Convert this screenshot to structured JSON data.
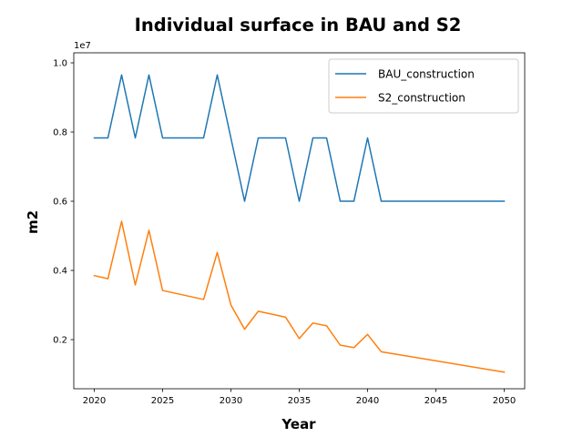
{
  "chart_data": {
    "type": "line",
    "title": "Individual surface in BAU and S2",
    "xlabel": "Year",
    "ylabel": "m2",
    "y_offset_label": "1e7",
    "y_scale_factor": 10000000,
    "xlim": [
      2018.5,
      2051.5
    ],
    "ylim": [
      580000,
      10290000
    ],
    "x_ticks": [
      2020,
      2025,
      2030,
      2035,
      2040,
      2045,
      2050
    ],
    "y_ticks": [
      0.2,
      0.4,
      0.6,
      0.8,
      1.0
    ],
    "y_tick_labels": [
      "0.2",
      "0.4",
      "0.6",
      "0.8",
      "1.0"
    ],
    "grid": false,
    "legend_position": "top-right",
    "series": [
      {
        "name": "BAU_construction",
        "color": "#1f77b4",
        "points": [
          [
            2020,
            7830000
          ],
          [
            2021,
            7830000
          ],
          [
            2022,
            9650000
          ],
          [
            2023,
            7830000
          ],
          [
            2024,
            9650000
          ],
          [
            2025,
            7830000
          ],
          [
            2028,
            7830000
          ],
          [
            2029,
            9650000
          ],
          [
            2031,
            6000000
          ],
          [
            2032,
            7830000
          ],
          [
            2034,
            7830000
          ],
          [
            2035,
            6000000
          ],
          [
            2036,
            7830000
          ],
          [
            2037,
            7830000
          ],
          [
            2038,
            6000000
          ],
          [
            2039,
            6000000
          ],
          [
            2040,
            7830000
          ],
          [
            2041,
            6000000
          ],
          [
            2050,
            6000000
          ]
        ]
      },
      {
        "name": "S2_construction",
        "color": "#ff7f0e",
        "points": [
          [
            2020,
            3850000
          ],
          [
            2021,
            3760000
          ],
          [
            2022,
            5420000
          ],
          [
            2023,
            3580000
          ],
          [
            2024,
            5160000
          ],
          [
            2025,
            3420000
          ],
          [
            2028,
            3160000
          ],
          [
            2029,
            4520000
          ],
          [
            2030,
            3000000
          ],
          [
            2031,
            2300000
          ],
          [
            2032,
            2820000
          ],
          [
            2034,
            2650000
          ],
          [
            2035,
            2030000
          ],
          [
            2036,
            2480000
          ],
          [
            2037,
            2400000
          ],
          [
            2038,
            1840000
          ],
          [
            2039,
            1770000
          ],
          [
            2040,
            2150000
          ],
          [
            2041,
            1650000
          ],
          [
            2050,
            1060000
          ]
        ]
      }
    ]
  }
}
